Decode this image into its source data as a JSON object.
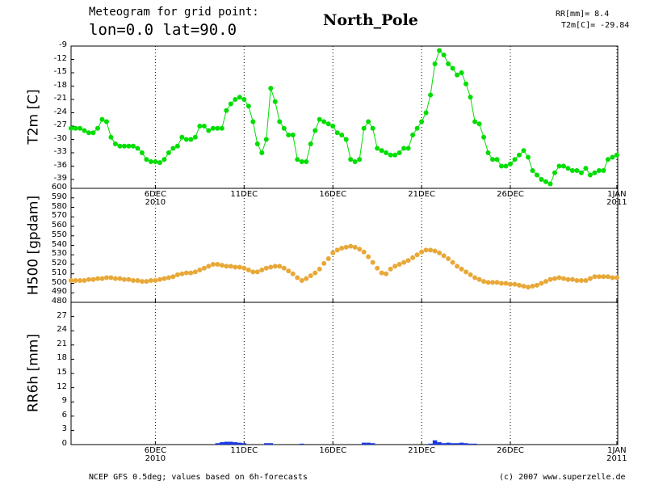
{
  "header": {
    "line1": "Meteogram for grid point:",
    "line2": "lon=0.0 lat=90.0",
    "station": "North_Pole",
    "info1": "RR[mm]= 8.4",
    "info2": "T2m[C]= -29.84"
  },
  "footer": {
    "left": "NCEP GFS 0.5deg; values based on 6h-forecasts",
    "right": "(c) 2007 www.superzelle.de"
  },
  "chart_data": [
    {
      "type": "line",
      "y_label": "T2m [C]",
      "color": "#00dd00",
      "grid": true,
      "x": [
        1.25,
        1.5,
        1.75,
        2,
        2.25,
        2.5,
        2.75,
        3,
        3.25,
        3.5,
        3.75,
        4,
        4.25,
        4.5,
        4.75,
        5,
        5.25,
        5.5,
        5.75,
        6,
        6.25,
        6.5,
        6.75,
        7,
        7.25,
        7.5,
        7.75,
        8,
        8.25,
        8.5,
        8.75,
        9,
        9.25,
        9.5,
        9.75,
        10,
        10.25,
        10.5,
        10.75,
        11,
        11.25,
        11.5,
        11.75,
        12,
        12.25,
        12.5,
        12.75,
        13,
        13.25,
        13.5,
        13.75,
        14,
        14.25,
        14.5,
        14.75,
        15,
        15.25,
        15.5,
        15.75,
        16,
        16.25,
        16.5,
        16.75,
        17,
        17.25,
        17.5,
        17.75,
        18,
        18.25,
        18.5,
        18.75,
        19,
        19.25,
        19.5,
        19.75,
        20,
        20.25,
        20.5,
        20.75,
        21,
        21.25,
        21.5,
        21.75,
        22,
        22.25,
        22.5,
        22.75,
        23,
        23.25,
        23.5,
        23.75,
        24,
        24.25,
        24.5,
        24.75,
        25,
        25.25,
        25.5,
        25.75,
        26,
        26.25,
        26.5,
        26.75,
        27,
        27.25,
        27.5,
        27.75,
        28,
        28.25,
        28.5,
        28.75,
        29,
        29.25,
        29.5,
        29.75,
        30,
        30.25,
        30.5,
        30.75,
        31,
        31.25,
        31.5,
        31.75,
        32
      ],
      "values": [
        -27.5,
        -27.5,
        -27.5,
        -28,
        -28.5,
        -28.5,
        -27.5,
        -25.5,
        -26,
        -29.5,
        -31,
        -31.5,
        -31.5,
        -31.5,
        -31.5,
        -32,
        -33,
        -34.5,
        -35,
        -35,
        -35.2,
        -34.5,
        -33,
        -32,
        -31.5,
        -29.5,
        -30,
        -30,
        -29.5,
        -27,
        -27,
        -28,
        -27.5,
        -27.5,
        -27.5,
        -23.5,
        -22,
        -21,
        -20.5,
        -21,
        -22.5,
        -26,
        -31,
        -33,
        -30,
        -18.5,
        -21.5,
        -26,
        -27.5,
        -29,
        -29,
        -34.5,
        -35,
        -35,
        -31,
        -28,
        -25.5,
        -26,
        -26.5,
        -27,
        -28.5,
        -29,
        -30,
        -34.5,
        -35,
        -34.5,
        -27.5,
        -26,
        -27.5,
        -32,
        -32.5,
        -33,
        -33.5,
        -33.5,
        -33,
        -32,
        -32,
        -29,
        -27.5,
        -26,
        -24,
        -20,
        -13,
        -10,
        -11,
        -13,
        -14,
        -15.5,
        -15,
        -17.5,
        -20.5,
        -26,
        -26.5,
        -29.5,
        -33,
        -34.5,
        -34.5,
        -36,
        -36,
        -35.5,
        -34.5,
        -33.5,
        -32.5,
        -34,
        -37,
        -38,
        -39,
        -39.5,
        -40,
        -37.5,
        -36,
        -36,
        -36.5,
        -37,
        -37,
        -37.5,
        -36.5,
        -38,
        -37.5,
        -37,
        -37,
        -34.5,
        -34,
        -33.5
      ],
      "xlim": [
        1.25,
        32.05
      ],
      "xticks": [
        {
          "value": 6,
          "label": "6DEC\n2010"
        },
        {
          "value": 11,
          "label": "11DEC"
        },
        {
          "value": 16,
          "label": "16DEC"
        },
        {
          "value": 21,
          "label": "21DEC"
        },
        {
          "value": 26,
          "label": "26DEC"
        },
        {
          "value": 32,
          "label": "1JAN\n2011"
        }
      ],
      "ylim": [
        -41,
        -9
      ],
      "yticks": [
        -39,
        -36,
        -33,
        -30,
        -27,
        -24,
        -21,
        -18,
        -15,
        -12,
        -9
      ]
    },
    {
      "type": "scatter",
      "y_label": "H500 [gpdam]",
      "color": "#e8a838",
      "grid": true,
      "values": [
        503,
        503,
        503,
        503,
        504,
        504,
        505,
        505,
        506,
        506,
        505,
        505,
        504,
        504,
        503,
        503,
        502,
        502,
        503,
        503,
        504,
        505,
        506,
        507,
        509,
        510,
        511,
        511,
        512,
        514,
        516,
        518,
        520,
        520,
        519,
        518,
        518,
        517,
        517,
        516,
        514,
        512,
        512,
        514,
        516,
        517,
        518,
        518,
        516,
        513,
        510,
        506,
        503,
        505,
        508,
        511,
        515,
        521,
        526,
        532,
        535,
        537,
        538,
        539,
        538,
        536,
        533,
        528,
        522,
        516,
        511,
        510,
        515,
        518,
        520,
        522,
        524,
        527,
        530,
        533,
        535,
        535,
        534,
        532,
        529,
        526,
        522,
        518,
        515,
        512,
        509,
        506,
        504,
        502,
        501,
        501,
        501,
        500,
        500,
        499,
        499,
        498,
        497,
        496,
        497,
        498,
        500,
        502,
        504,
        505,
        506,
        505,
        504,
        504,
        503,
        503,
        503,
        505,
        507,
        507,
        507,
        507,
        506,
        506
      ],
      "ylim": [
        480,
        600
      ],
      "yticks": [
        480,
        490,
        500,
        510,
        520,
        530,
        540,
        550,
        560,
        570,
        580,
        590,
        600
      ]
    },
    {
      "type": "bar",
      "y_label": "RR6h [mm]",
      "color": "#1838e8",
      "grid": true,
      "values": [
        0,
        0,
        0,
        0,
        0,
        0,
        0,
        0,
        0,
        0,
        0,
        0,
        0,
        0,
        0,
        0,
        0,
        0,
        0,
        0,
        0,
        0,
        0,
        0,
        0,
        0,
        0,
        0,
        0,
        0,
        0,
        0,
        0,
        0.3,
        0.5,
        0.6,
        0.6,
        0.5,
        0.4,
        0.3,
        0,
        0,
        0,
        0,
        0.3,
        0.3,
        0,
        0,
        0,
        0,
        0,
        0,
        0.2,
        0,
        0,
        0,
        0,
        0,
        0,
        0,
        0,
        0,
        0,
        0,
        0,
        0,
        0.4,
        0.4,
        0.3,
        0,
        0,
        0,
        0,
        0,
        0,
        0,
        0,
        0,
        0,
        0,
        0,
        0.2,
        0.9,
        0.5,
        0.3,
        0.4,
        0.3,
        0.3,
        0.4,
        0.3,
        0.2,
        0.2,
        0,
        0,
        0,
        0,
        0,
        0,
        0,
        0,
        0,
        0,
        0,
        0,
        0,
        0,
        0,
        0,
        0,
        0,
        0,
        0,
        0,
        0,
        0,
        0,
        0,
        0,
        0,
        0,
        0,
        0,
        0,
        0
      ],
      "ylim": [
        0,
        30
      ],
      "yticks": [
        0,
        3,
        6,
        9,
        12,
        15,
        18,
        21,
        24,
        27
      ]
    }
  ]
}
